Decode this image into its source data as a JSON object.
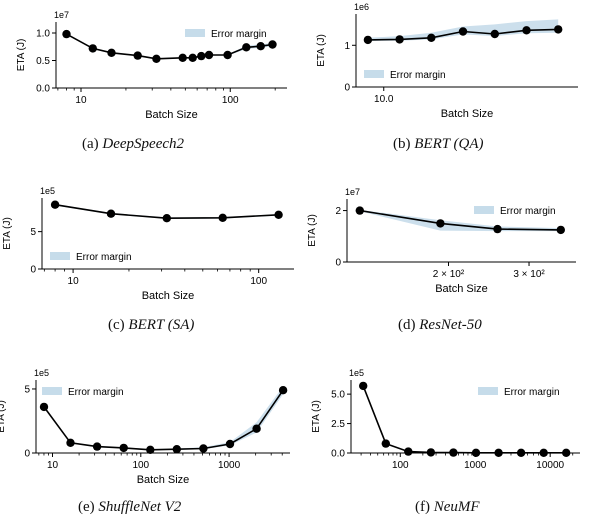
{
  "colors": {
    "line": "#000000",
    "band": "#c6dcea",
    "axis": "#000000"
  },
  "chart_data": [
    {
      "id": "a",
      "type": "line",
      "caption_label": "(a)",
      "caption_name": "DeepSpeech2",
      "xlabel": "Batch Size",
      "ylabel": "ETA (J)",
      "exponent": "1e7",
      "xscale": "log",
      "xlim": [
        6.8,
        240
      ],
      "ylim": [
        0,
        1.2
      ],
      "yticks": [
        0.0,
        0.5,
        1.0
      ],
      "yticklabels": [
        "0.0",
        "0.5",
        "1.0"
      ],
      "xticks": [
        10,
        100
      ],
      "xticklabels": [
        "10",
        "100"
      ],
      "legend": {
        "label": "Error margin",
        "loc": "upper-right"
      },
      "x": [
        8,
        12,
        16,
        24,
        32,
        48,
        56,
        64,
        72,
        96,
        128,
        160,
        192
      ],
      "y": [
        0.98,
        0.72,
        0.64,
        0.59,
        0.53,
        0.55,
        0.55,
        0.58,
        0.6,
        0.6,
        0.74,
        0.76,
        0.79
      ],
      "band_low": [
        0.97,
        0.71,
        0.63,
        0.58,
        0.52,
        0.54,
        0.54,
        0.57,
        0.59,
        0.59,
        0.71,
        0.73,
        0.76
      ],
      "band_high": [
        0.99,
        0.73,
        0.65,
        0.6,
        0.54,
        0.56,
        0.56,
        0.59,
        0.61,
        0.61,
        0.77,
        0.79,
        0.82
      ]
    },
    {
      "id": "b",
      "type": "line",
      "caption_label": "(b)",
      "caption_name": "BERT (QA)",
      "xlabel": "Batch Size",
      "ylabel": "ETA (J)",
      "exponent": "1e6",
      "xscale": "linear",
      "xlim": [
        6.5,
        34.5
      ],
      "ylim": [
        0,
        1.75
      ],
      "yticks": [
        0,
        1
      ],
      "yticklabels": [
        "0",
        "1"
      ],
      "xticks": [
        10
      ],
      "xticklabels": [
        "10.0"
      ],
      "legend": {
        "label": "Error margin",
        "loc": "lower-left"
      },
      "x": [
        8,
        12,
        16,
        20,
        24,
        28,
        32
      ],
      "y": [
        1.13,
        1.14,
        1.18,
        1.33,
        1.27,
        1.36,
        1.38
      ],
      "band_low": [
        1.1,
        1.11,
        1.14,
        1.26,
        1.22,
        1.29,
        1.3
      ],
      "band_high": [
        1.18,
        1.22,
        1.3,
        1.45,
        1.5,
        1.58,
        1.62
      ]
    },
    {
      "id": "c",
      "type": "line",
      "caption_label": "(c)",
      "caption_name": "BERT (SA)",
      "xlabel": "Batch Size",
      "ylabel": "ETA (J)",
      "exponent": "1e5",
      "xscale": "log",
      "xlim": [
        6.8,
        155
      ],
      "ylim": [
        0,
        9.5
      ],
      "yticks": [
        0,
        5
      ],
      "yticklabels": [
        "0",
        "5"
      ],
      "xticks": [
        10,
        100
      ],
      "xticklabels": [
        "10",
        "100"
      ],
      "legend": {
        "label": "Error margin",
        "loc": "lower-left"
      },
      "x": [
        8,
        16,
        32,
        64,
        128
      ],
      "y": [
        8.6,
        7.4,
        6.8,
        6.85,
        7.25
      ],
      "band_low": [
        8.5,
        7.3,
        6.7,
        6.75,
        7.15
      ],
      "band_high": [
        8.7,
        7.5,
        6.9,
        6.95,
        7.35
      ]
    },
    {
      "id": "d",
      "type": "line",
      "caption_label": "(d)",
      "caption_name": "ResNet-50",
      "xlabel": "Batch Size",
      "ylabel": "ETA (J)",
      "exponent": "1e7",
      "xscale": "log",
      "xlim": [
        120,
        380
      ],
      "ylim": [
        0,
        2.45
      ],
      "yticks": [
        0,
        2
      ],
      "yticklabels": [
        "0",
        "2"
      ],
      "xticks": [
        200,
        300
      ],
      "xticklabels": [
        "2 × 10²",
        "3 × 10²"
      ],
      "legend": {
        "label": "Error margin",
        "loc": "upper-right"
      },
      "x": [
        128,
        192,
        256,
        352
      ],
      "y": [
        2.0,
        1.5,
        1.28,
        1.25
      ],
      "band_low": [
        1.97,
        1.22,
        1.2,
        1.2
      ],
      "band_high": [
        2.03,
        1.62,
        1.38,
        1.32
      ]
    },
    {
      "id": "e",
      "type": "line",
      "caption_label": "(e)",
      "caption_name": "ShuffleNet V2",
      "xlabel": "Batch Size",
      "ylabel": "ETA (J)",
      "exponent": "1e5",
      "xscale": "log",
      "xlim": [
        6.5,
        4900
      ],
      "ylim": [
        0,
        5.7
      ],
      "yticks": [
        0,
        5
      ],
      "yticklabels": [
        "0",
        "5"
      ],
      "xticks": [
        10,
        100,
        1000
      ],
      "xticklabels": [
        "10",
        "100",
        "1000"
      ],
      "legend": {
        "label": "Error margin",
        "loc": "upper-left"
      },
      "x": [
        8,
        16,
        32,
        64,
        128,
        256,
        512,
        1024,
        2048,
        4096
      ],
      "y": [
        3.6,
        0.8,
        0.5,
        0.4,
        0.25,
        0.3,
        0.35,
        0.7,
        1.9,
        4.9
      ],
      "band_low": [
        3.55,
        0.75,
        0.45,
        0.35,
        0.2,
        0.25,
        0.3,
        0.6,
        1.6,
        4.6
      ],
      "band_high": [
        3.65,
        0.85,
        0.55,
        0.45,
        0.3,
        0.35,
        0.45,
        0.85,
        2.4,
        5.2
      ]
    },
    {
      "id": "f",
      "type": "line",
      "caption_label": "(f)",
      "caption_name": "NeuMF",
      "xlabel": "",
      "ylabel": "ETA (J)",
      "exponent": "1e5",
      "xscale": "log",
      "xlim": [
        22,
        25000
      ],
      "ylim": [
        0,
        6.2
      ],
      "yticks": [
        0.0,
        2.5,
        5.0
      ],
      "yticklabels": [
        "0.0",
        "2.5",
        "5.0"
      ],
      "xticks": [
        100,
        1000,
        10000
      ],
      "xticklabels": [
        "100",
        "1000",
        "10000"
      ],
      "legend": {
        "label": "Error margin",
        "loc": "upper-right"
      },
      "x": [
        32,
        64,
        128,
        256,
        512,
        1024,
        2048,
        4096,
        8192,
        16384
      ],
      "y": [
        5.7,
        0.8,
        0.12,
        0.05,
        0.03,
        0.02,
        0.02,
        0.02,
        0.02,
        0.02
      ],
      "band_low": [
        5.65,
        0.75,
        0.1,
        0.04,
        0.02,
        0.01,
        0.01,
        0.01,
        0.01,
        0.01
      ],
      "band_high": [
        5.75,
        0.85,
        0.14,
        0.06,
        0.04,
        0.03,
        0.03,
        0.03,
        0.03,
        0.03
      ]
    }
  ]
}
